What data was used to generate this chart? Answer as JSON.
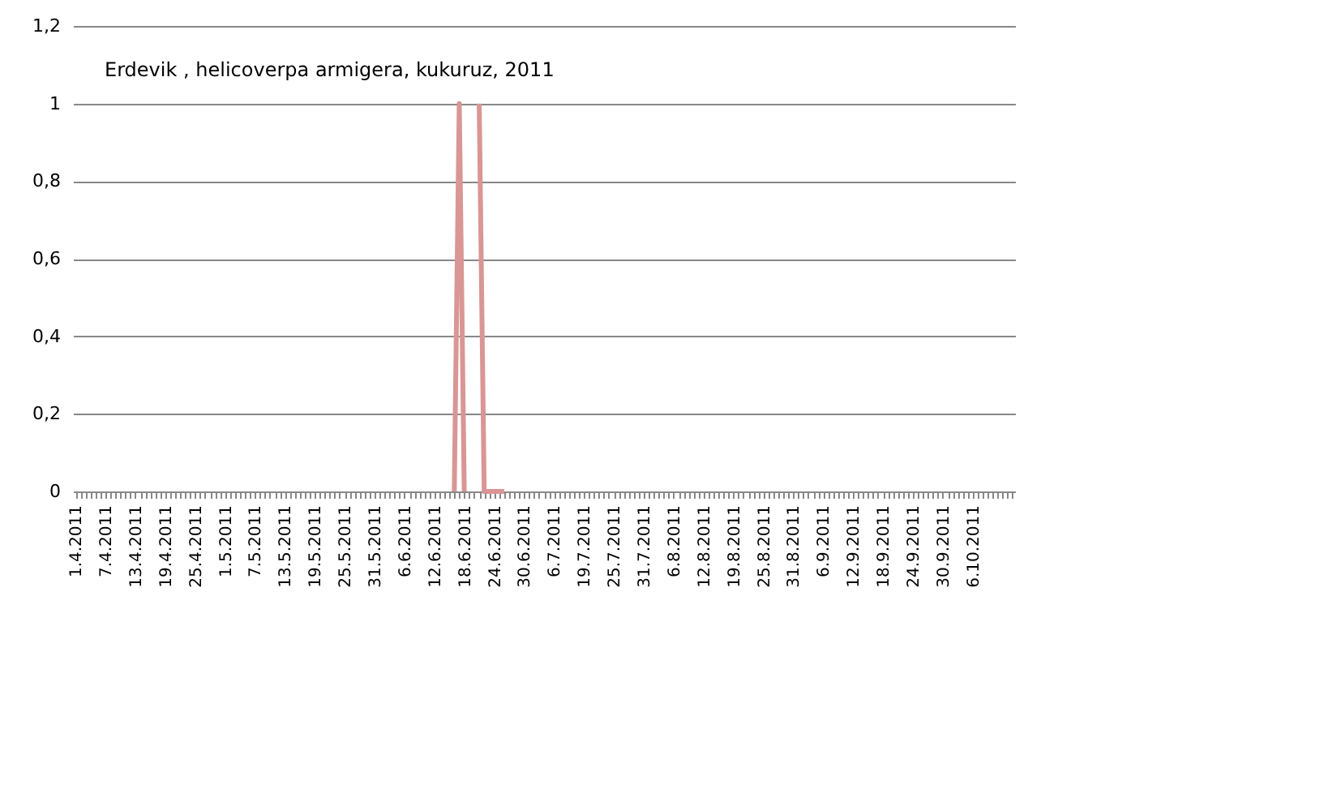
{
  "chart_data": {
    "type": "line",
    "title": "Erdevik , helicoverpa armigera, kukuruz, 2011",
    "categories": [
      "1.4.2011",
      null,
      null,
      null,
      null,
      null,
      "7.4.2011",
      null,
      null,
      null,
      null,
      null,
      "13.4.2011",
      null,
      null,
      null,
      null,
      null,
      "19.4.2011",
      null,
      null,
      null,
      null,
      null,
      "25.4.2011",
      null,
      null,
      null,
      null,
      null,
      "1.5.2011",
      null,
      null,
      null,
      null,
      null,
      "7.5.2011",
      null,
      null,
      null,
      null,
      null,
      "13.5.2011",
      null,
      null,
      null,
      null,
      null,
      "19.5.2011",
      null,
      null,
      null,
      null,
      null,
      "25.5.2011",
      null,
      null,
      null,
      null,
      null,
      "31.5.2011",
      null,
      null,
      null,
      null,
      null,
      "6.6.2011",
      null,
      null,
      null,
      null,
      null,
      "12.6.2011",
      null,
      null,
      null,
      null,
      null,
      "18.6.2011",
      null,
      null,
      null,
      null,
      null,
      "24.6.2011",
      null,
      null,
      null,
      null,
      null,
      "30.6.2011",
      null,
      null,
      null,
      null,
      null,
      "6.7.2011",
      null,
      null,
      null,
      null,
      null,
      "19.7.2011",
      null,
      null,
      null,
      null,
      null,
      "25.7.2011",
      null,
      null,
      null,
      null,
      null,
      "31.7.2011",
      null,
      null,
      null,
      null,
      null,
      "6.8.2011",
      null,
      null,
      null,
      null,
      null,
      "12.8.2011",
      null,
      null,
      null,
      null,
      null,
      "19.8.2011",
      null,
      null,
      null,
      null,
      null,
      "25.8.2011",
      null,
      null,
      null,
      null,
      null,
      "31.8.2011",
      null,
      null,
      null,
      null,
      null,
      "6.9.2011",
      null,
      null,
      null,
      null,
      null,
      "12.9.2011",
      null,
      null,
      null,
      null,
      null,
      "18.9.2011",
      null,
      null,
      null,
      null,
      null,
      "24.9.2011",
      null,
      null,
      null,
      null,
      null,
      "30.9.2011",
      null,
      null,
      null,
      null,
      null,
      "6.10.2011",
      null,
      null,
      null,
      null,
      null,
      null,
      null,
      null
    ],
    "series": [
      {
        "color": "#d99694",
        "values": [
          null,
          null,
          null,
          null,
          null,
          null,
          null,
          null,
          null,
          null,
          null,
          null,
          null,
          null,
          null,
          null,
          null,
          null,
          null,
          null,
          null,
          null,
          null,
          null,
          null,
          null,
          null,
          null,
          null,
          null,
          null,
          null,
          null,
          null,
          null,
          null,
          null,
          null,
          null,
          null,
          null,
          null,
          null,
          null,
          null,
          null,
          null,
          null,
          null,
          null,
          null,
          null,
          null,
          null,
          null,
          null,
          null,
          null,
          null,
          null,
          null,
          null,
          null,
          null,
          null,
          null,
          null,
          null,
          null,
          null,
          null,
          null,
          null,
          null,
          null,
          null,
          0,
          1,
          0,
          null,
          null,
          1,
          0,
          0,
          0,
          0,
          0,
          null,
          null,
          null,
          null,
          null,
          null,
          null,
          null,
          null,
          null,
          null,
          null,
          null,
          null,
          null,
          null,
          null,
          null,
          null,
          null,
          null,
          null,
          null,
          null,
          null,
          null,
          null,
          null,
          null,
          null,
          null,
          null,
          null,
          null,
          null,
          null,
          null,
          null,
          null,
          null,
          null,
          null,
          null,
          null,
          null,
          null,
          null,
          null,
          null,
          null,
          null,
          null,
          null,
          null,
          null,
          null,
          null,
          null,
          null,
          null,
          null,
          null,
          null,
          null,
          null,
          null,
          null,
          null,
          null,
          null,
          null,
          null,
          null,
          null,
          null,
          null,
          null,
          null,
          null,
          null,
          null,
          null,
          null,
          null,
          null,
          null,
          null,
          null,
          null,
          null,
          null,
          null,
          null,
          null,
          null,
          null,
          null,
          null,
          null,
          null,
          null,
          null
        ]
      }
    ],
    "ylim": [
      0,
      1.2
    ],
    "yticks": [
      0,
      {
        "value": 0.2,
        "label": "0,2"
      },
      {
        "value": 0.4,
        "label": "0,4"
      },
      {
        "value": 0.6,
        "label": "0,6"
      },
      {
        "value": 0.8,
        "label": "0,8"
      },
      1,
      {
        "value": 1.2,
        "label": "1,2"
      }
    ],
    "grid": "y",
    "marker": "none",
    "line_style": "solid"
  }
}
